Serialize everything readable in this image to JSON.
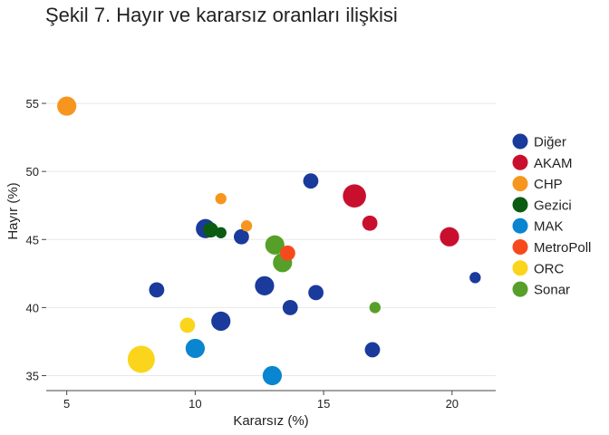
{
  "chart_data": {
    "type": "scatter",
    "title": "Şekil 7. Hayır ve kararsız oranları ilişkisi",
    "xlabel": "Kararsız (%)",
    "ylabel": "Hayır (%)",
    "xlim": [
      4.2,
      21.7
    ],
    "ylim": [
      33.9,
      58.6
    ],
    "xticks": [
      5,
      10,
      15,
      20
    ],
    "yticks": [
      35,
      40,
      45,
      50,
      55
    ],
    "grid": "horizontal",
    "legend_position": "right",
    "series": [
      {
        "name": "Diğer",
        "color": "#1a3a9c",
        "points": [
          {
            "x": 14.5,
            "y": 49.3,
            "s": 2
          },
          {
            "x": 10.4,
            "y": 45.8,
            "s": 3
          },
          {
            "x": 11.8,
            "y": 45.2,
            "s": 2
          },
          {
            "x": 8.5,
            "y": 41.3,
            "s": 2
          },
          {
            "x": 12.7,
            "y": 41.6,
            "s": 3
          },
          {
            "x": 14.7,
            "y": 41.1,
            "s": 2
          },
          {
            "x": 13.7,
            "y": 40.0,
            "s": 2
          },
          {
            "x": 11.0,
            "y": 39.0,
            "s": 3
          },
          {
            "x": 16.9,
            "y": 36.9,
            "s": 2
          },
          {
            "x": 20.9,
            "y": 42.2,
            "s": 1
          }
        ]
      },
      {
        "name": "AKAM",
        "color": "#c8102e",
        "points": [
          {
            "x": 16.2,
            "y": 48.2,
            "s": 4
          },
          {
            "x": 16.8,
            "y": 46.2,
            "s": 2
          },
          {
            "x": 19.9,
            "y": 45.2,
            "s": 3
          }
        ]
      },
      {
        "name": "CHP",
        "color": "#f7961e",
        "points": [
          {
            "x": 5.0,
            "y": 54.8,
            "s": 3
          },
          {
            "x": 11.0,
            "y": 48.0,
            "s": 1
          },
          {
            "x": 12.0,
            "y": 46.0,
            "s": 1
          }
        ]
      },
      {
        "name": "Gezici",
        "color": "#0b5b12",
        "points": [
          {
            "x": 10.6,
            "y": 45.7,
            "s": 2
          },
          {
            "x": 11.0,
            "y": 45.5,
            "s": 1
          }
        ]
      },
      {
        "name": "MAK",
        "color": "#0a85cf",
        "points": [
          {
            "x": 10.0,
            "y": 37.0,
            "s": 3
          },
          {
            "x": 13.0,
            "y": 35.0,
            "s": 3
          }
        ]
      },
      {
        "name": "MetroPoll",
        "color": "#f64a1c",
        "points": [
          {
            "x": 13.6,
            "y": 44.0,
            "s": 2
          }
        ]
      },
      {
        "name": "ORC",
        "color": "#fad51c",
        "points": [
          {
            "x": 7.9,
            "y": 36.2,
            "s": 5
          },
          {
            "x": 9.7,
            "y": 38.7,
            "s": 2
          }
        ]
      },
      {
        "name": "Sonar",
        "color": "#56a02a",
        "points": [
          {
            "x": 13.1,
            "y": 44.6,
            "s": 3
          },
          {
            "x": 13.4,
            "y": 43.3,
            "s": 3
          },
          {
            "x": 17.0,
            "y": 40.0,
            "s": 1
          }
        ]
      }
    ]
  }
}
